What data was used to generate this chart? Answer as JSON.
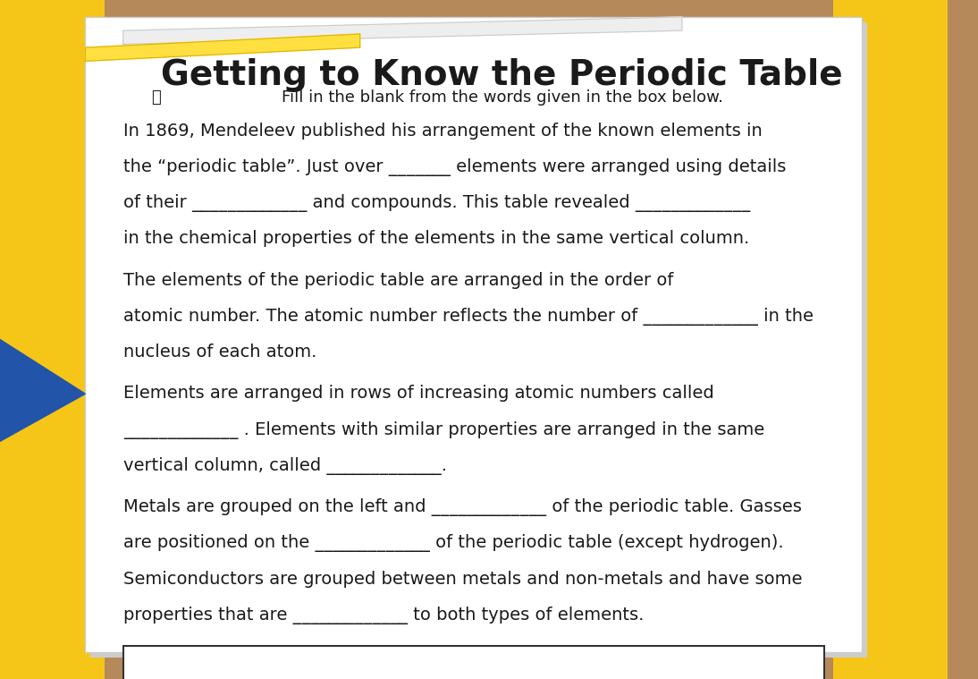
{
  "title": "Getting to Know the Periodic Table",
  "subtitle": "Fill in the blank from the words given in the box below.",
  "background_color": "#b5895a",
  "paper_color": "#ffffff",
  "text_color": "#1a1a1a",
  "yellow_color": "#f5c518",
  "p1_lines": [
    "In 1869, Mendeleev published his arrangement of the known elements in",
    "the “periodic table”. Just over _______ elements were arranged using details",
    "of their _____________ and compounds. This table revealed _____________",
    "in the chemical properties of the elements in the same vertical column."
  ],
  "p2_lines": [
    "The elements of the periodic table are arranged in the order of",
    "atomic number. The atomic number reflects the number of _____________ in the",
    "nucleus of each atom."
  ],
  "p3_lines": [
    "Elements are arranged in rows of increasing atomic numbers called",
    "_____________ . Elements with similar properties are arranged in the same",
    "vertical column, called _____________."
  ],
  "p4_lines": [
    "Metals are grouped on the left and _____________ of the periodic table. Gasses",
    "are positioned on the _____________ of the periodic table (except hydrogen).",
    "Semiconductors are grouped between metals and non-metals and have some",
    "properties that are _____________ to both types of elements."
  ],
  "font_size_title": 28,
  "font_size_subtitle": 13,
  "font_size_body": 14
}
